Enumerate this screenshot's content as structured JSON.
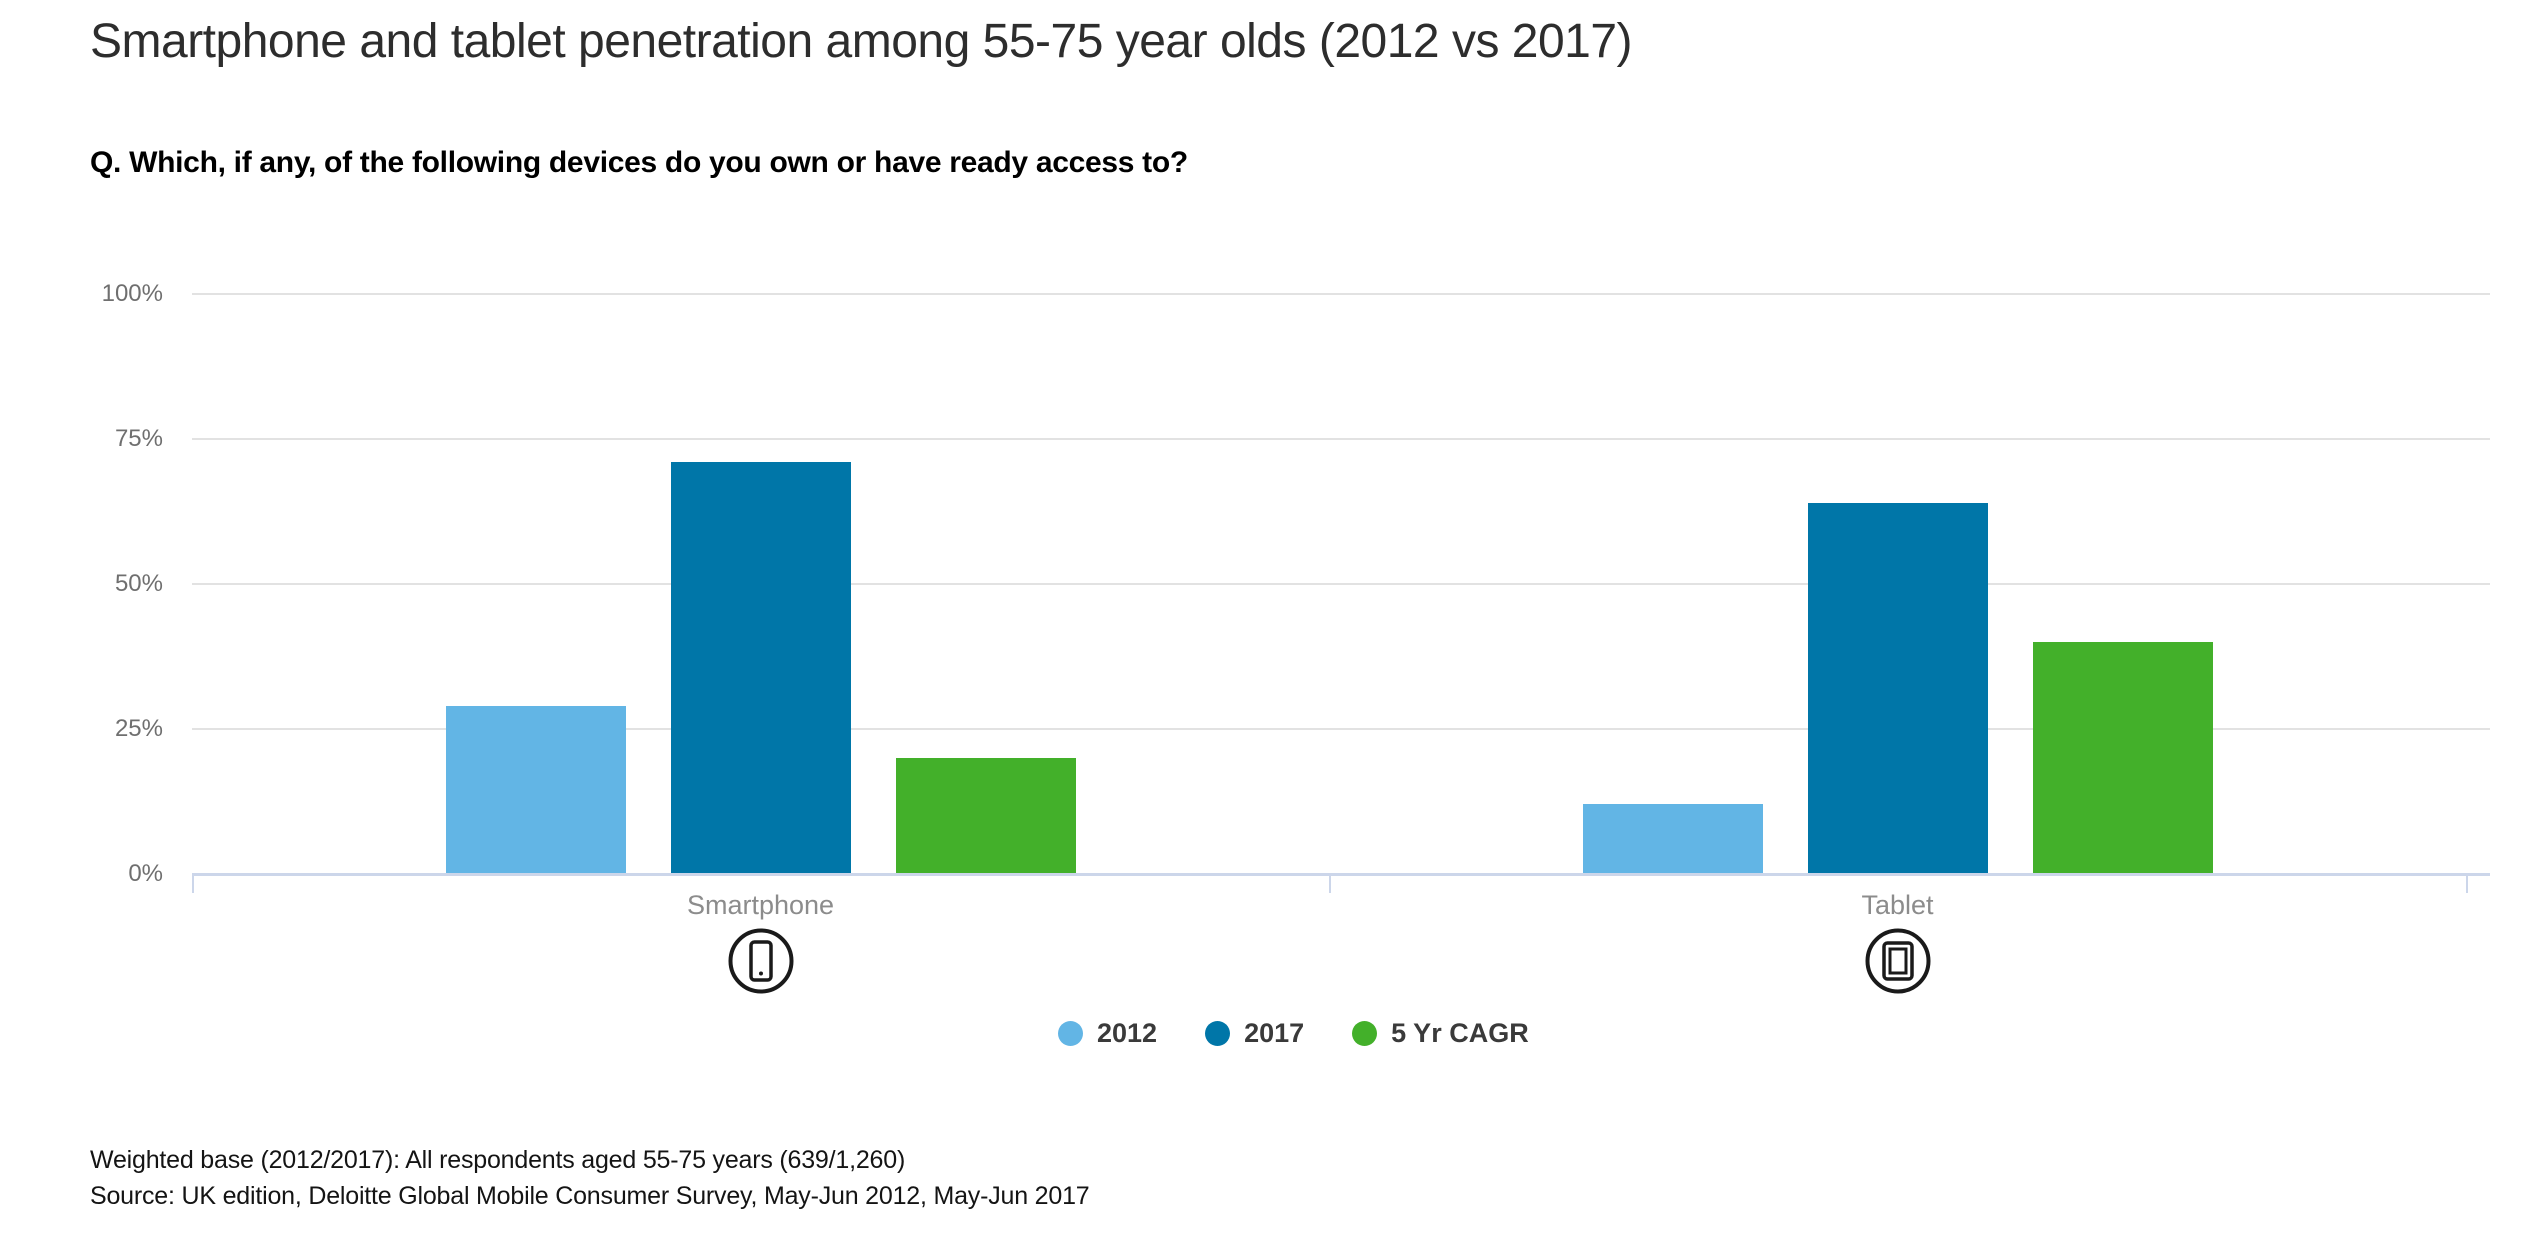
{
  "header": {
    "title": "Smartphone and tablet penetration among 55-75 year olds (2012 vs 2017)",
    "question": "Q. Which, if any, of the following devices do you own or have ready access to?"
  },
  "chart_data": {
    "type": "bar",
    "categories": [
      "Smartphone",
      "Tablet"
    ],
    "category_icons": [
      "smartphone-icon",
      "tablet-icon"
    ],
    "series": [
      {
        "name": "2012",
        "color": "#62B5E5",
        "values": [
          29,
          12
        ]
      },
      {
        "name": "2017",
        "color": "#0076A8",
        "values": [
          71,
          64
        ]
      },
      {
        "name": "5 Yr CAGR",
        "color": "#43B02A",
        "values": [
          20,
          40
        ]
      }
    ],
    "xlabel": "",
    "ylabel": "",
    "ylim": [
      0,
      100
    ],
    "yticks": [
      0,
      25,
      50,
      75,
      100
    ],
    "ytick_labels": [
      "0%",
      "25%",
      "50%",
      "75%",
      "100%"
    ],
    "grid": true,
    "legend_position": "bottom"
  },
  "colors": {
    "axis": "#ccd6ea",
    "gridline": "#e2e2e2",
    "ylabel_text": "#6f6f6f",
    "category_text": "#8c8c8c",
    "legend_text": "#3a3a3a",
    "icon_stroke": "#1a1a1a"
  },
  "footer": {
    "line1": "Weighted base (2012/2017): All respondents aged 55-75 years (639/1,260)",
    "line2": "Source: UK edition, Deloitte Global Mobile Consumer Survey, May-Jun 2012, May-Jun 2017"
  }
}
